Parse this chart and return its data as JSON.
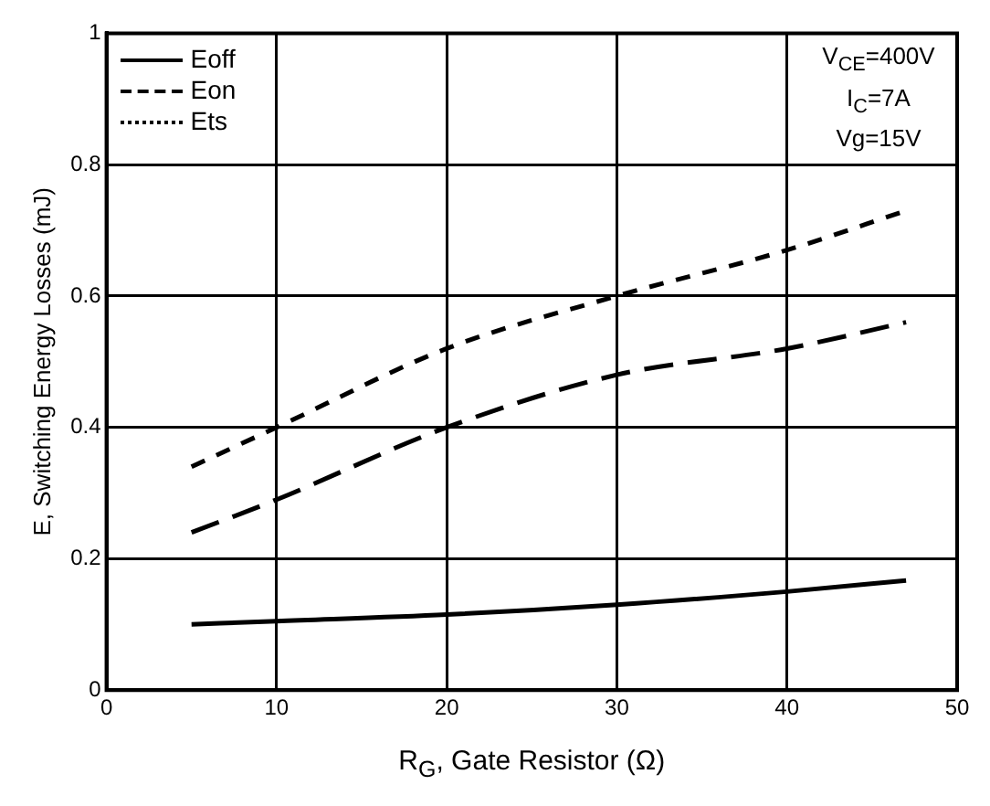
{
  "chart_data": {
    "type": "line",
    "xlabel": "R$_{G}$, Gate Resistor (Ω)",
    "ylabel": "E, Switching Energy Losses (mJ)",
    "xlim": [
      0,
      50
    ],
    "xticks": [
      0,
      10,
      20,
      30,
      40,
      50
    ],
    "ylim": [
      0,
      1
    ],
    "yticks": [
      0,
      0.2,
      0.4,
      0.6,
      0.8,
      1
    ],
    "grid": true,
    "legend": "top left",
    "marker": "none",
    "annotations": [
      "V$_{CE}$=400V",
      "I$_{C}$=7A",
      "Vg=15V"
    ],
    "series": [
      {
        "name": "Eoff",
        "color": "#000000",
        "line_style": "solid",
        "x": [
          5,
          10,
          20,
          30,
          40,
          47
        ],
        "values": [
          0.1,
          0.105,
          0.115,
          0.13,
          0.15,
          0.167
        ]
      },
      {
        "name": "Eon",
        "color": "#000000",
        "line_style": "dashed",
        "x": [
          5,
          10,
          20,
          30,
          40,
          47
        ],
        "values": [
          0.24,
          0.29,
          0.4,
          0.48,
          0.52,
          0.56
        ]
      },
      {
        "name": "Ets",
        "color": "#000000",
        "line_style": "dotted",
        "x": [
          5,
          10,
          20,
          30,
          40,
          47
        ],
        "values": [
          0.34,
          0.4,
          0.52,
          0.6,
          0.67,
          0.73
        ]
      }
    ]
  }
}
